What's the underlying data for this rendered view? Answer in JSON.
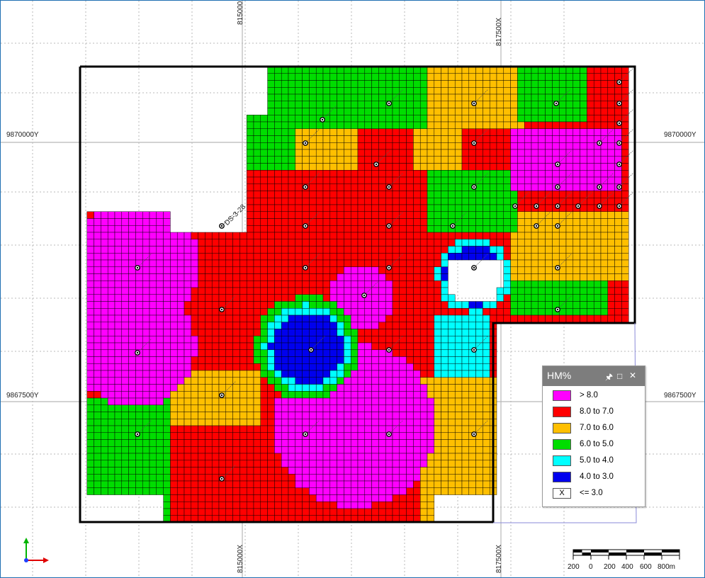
{
  "map": {
    "easting_labels": [
      "815000X",
      "817500X"
    ],
    "northing_labels": [
      "9870000Y",
      "9867500Y"
    ],
    "drillholes": [
      "DS-3-28"
    ]
  },
  "legend": {
    "title": "HM%",
    "controls": [
      "pin-icon",
      "maximize-icon",
      "close-icon"
    ],
    "items": [
      {
        "label": "> 8.0",
        "color": "#ff00ff",
        "marker": ""
      },
      {
        "label": "8.0 to 7.0",
        "color": "#ff0000",
        "marker": ""
      },
      {
        "label": "7.0 to 6.0",
        "color": "#ffbf00",
        "marker": ""
      },
      {
        "label": "6.0 to 5.0",
        "color": "#00dd00",
        "marker": ""
      },
      {
        "label": "5.0 to 4.0",
        "color": "#00ffff",
        "marker": ""
      },
      {
        "label": "4.0 to 3.0",
        "color": "#0000ee",
        "marker": ""
      },
      {
        "label": "<= 3.0",
        "color": "#ffffff",
        "marker": "X"
      }
    ]
  },
  "scalebar": {
    "ticks": [
      "200",
      "0",
      "200",
      "400",
      "600",
      "800m"
    ]
  },
  "colors": {
    "grid_line": "#000000",
    "graticule": "#b8b8b8",
    "boundary": "#000000"
  }
}
